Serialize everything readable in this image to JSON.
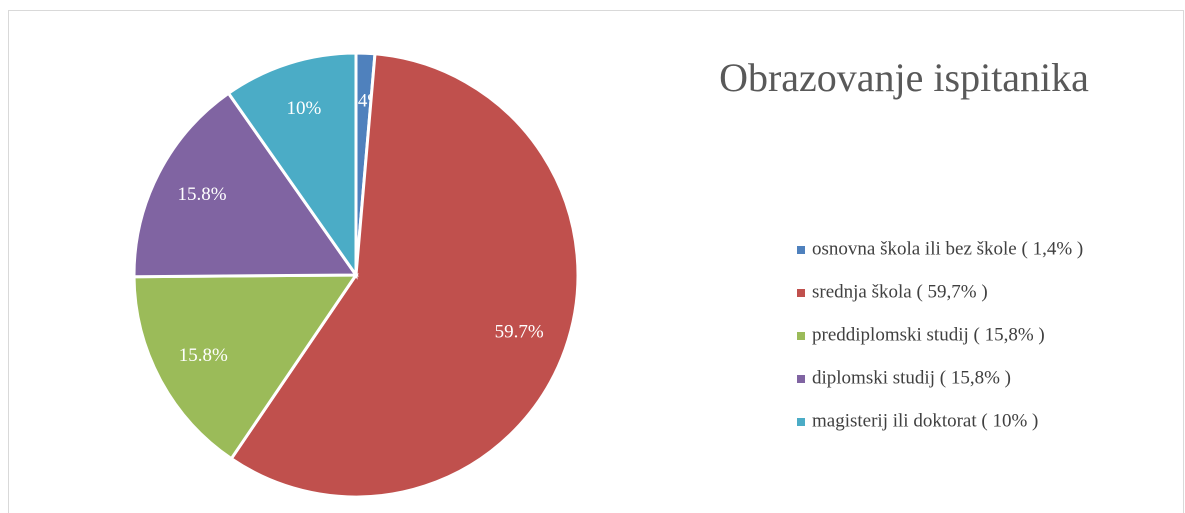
{
  "chart_data": {
    "type": "pie",
    "title": "Obrazovanje ispitanika",
    "categories": [
      "osnovna škola ili bez škole ( 1,4% )",
      "srednja škola ( 59,7% )",
      "preddiplomski studij ( 15,8% )",
      "diplomski studij ( 15,8% )",
      "magisterij ili doktorat ( 10% )"
    ],
    "values": [
      1.4,
      59.7,
      15.8,
      15.8,
      10
    ],
    "value_labels": [
      "1.4%",
      "59.7%",
      "15.8%",
      "15.8%",
      "10%"
    ],
    "colors": [
      "#4f81bd",
      "#c0504d",
      "#9bbb59",
      "#8064a2",
      "#4bacc6"
    ],
    "legend": "right"
  }
}
